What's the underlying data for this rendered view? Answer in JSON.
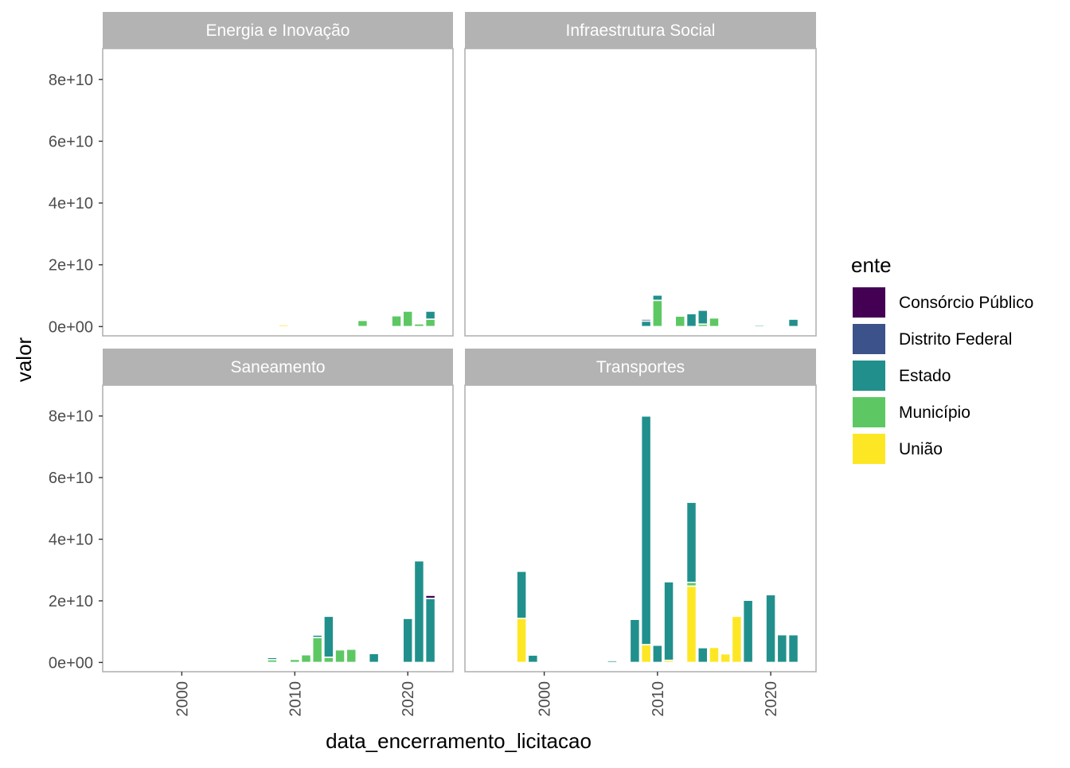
{
  "chart_data": {
    "type": "bar",
    "stacked": true,
    "facet_layout": "2x2",
    "xlabel": "data_encerramento_licitacao",
    "ylabel": "valor",
    "xlim": [
      1993,
      2024
    ],
    "ylim": [
      -3000000000,
      90000000000
    ],
    "x_ticks": [
      2000,
      2010,
      2020
    ],
    "x_tick_labels": [
      "2000",
      "2010",
      "2020"
    ],
    "y_ticks": [
      0,
      20000000000,
      40000000000,
      60000000000,
      80000000000
    ],
    "y_tick_labels": [
      "0e+00",
      "2e+10",
      "4e+10",
      "6e+10",
      "8e+10"
    ],
    "grid": false,
    "legend": {
      "title": "ente",
      "position": "right",
      "entries": [
        {
          "name": "Consórcio Público",
          "color": "#440154"
        },
        {
          "name": "Distrito Federal",
          "color": "#3B528B"
        },
        {
          "name": "Estado",
          "color": "#21908C"
        },
        {
          "name": "Município",
          "color": "#5DC863"
        },
        {
          "name": "União",
          "color": "#FDE725"
        }
      ]
    },
    "stack_order": [
      "União",
      "Município",
      "Estado",
      "Distrito Federal",
      "Consórcio Público"
    ],
    "panels": [
      {
        "title": "Energia e Inovação",
        "bars": [
          {
            "x": 2009,
            "values": {
              "União": 600000000
            }
          },
          {
            "x": 2016,
            "values": {
              "Município": 2000000000
            }
          },
          {
            "x": 2019,
            "values": {
              "Município": 3500000000
            }
          },
          {
            "x": 2020,
            "values": {
              "Município": 5000000000
            }
          },
          {
            "x": 2021,
            "values": {
              "Município": 900000000
            }
          },
          {
            "x": 2022,
            "values": {
              "Município": 2400000000,
              "Estado": 2600000000
            }
          }
        ]
      },
      {
        "title": "Infraestrutura Social",
        "bars": [
          {
            "x": 2009,
            "values": {
              "Estado": 1800000000,
              "Distrito Federal": 600000000
            }
          },
          {
            "x": 2010,
            "values": {
              "Município": 8500000000,
              "Estado": 1700000000
            }
          },
          {
            "x": 2012,
            "values": {
              "Município": 3400000000
            }
          },
          {
            "x": 2013,
            "values": {
              "Estado": 4200000000
            }
          },
          {
            "x": 2014,
            "values": {
              "Município": 800000000,
              "Estado": 4500000000
            }
          },
          {
            "x": 2015,
            "values": {
              "Município": 2800000000
            }
          },
          {
            "x": 2016,
            "values": {
              "Município": 300000000
            }
          },
          {
            "x": 2019,
            "values": {
              "Estado": 500000000
            }
          },
          {
            "x": 2022,
            "values": {
              "Estado": 2400000000
            }
          }
        ]
      },
      {
        "title": "Saneamento",
        "bars": [
          {
            "x": 2006,
            "values": {
              "Município": 300000000
            }
          },
          {
            "x": 2008,
            "values": {
              "Município": 900000000,
              "Estado": 700000000
            }
          },
          {
            "x": 2010,
            "values": {
              "Município": 1000000000
            }
          },
          {
            "x": 2011,
            "values": {
              "Município": 2500000000
            }
          },
          {
            "x": 2012,
            "values": {
              "Município": 8100000000,
              "Estado": 800000000
            }
          },
          {
            "x": 2013,
            "values": {
              "Município": 1700000000,
              "Estado": 13300000000
            }
          },
          {
            "x": 2014,
            "values": {
              "Município": 4100000000
            }
          },
          {
            "x": 2015,
            "values": {
              "Município": 4300000000
            }
          },
          {
            "x": 2017,
            "values": {
              "Estado": 2900000000
            }
          },
          {
            "x": 2020,
            "values": {
              "Estado": 14300000000
            }
          },
          {
            "x": 2021,
            "values": {
              "Estado": 33000000000
            }
          },
          {
            "x": 2022,
            "values": {
              "Estado": 20800000000,
              "Consórcio Público": 1000000000
            }
          }
        ]
      },
      {
        "title": "Transportes",
        "bars": [
          {
            "x": 1998,
            "values": {
              "União": 14300000000,
              "Estado": 15300000000
            }
          },
          {
            "x": 1999,
            "values": {
              "Estado": 2400000000
            }
          },
          {
            "x": 2006,
            "values": {
              "Estado": 600000000
            }
          },
          {
            "x": 2008,
            "values": {
              "Estado": 14000000000
            }
          },
          {
            "x": 2009,
            "values": {
              "União": 5800000000,
              "Estado": 74200000000
            }
          },
          {
            "x": 2010,
            "values": {
              "Estado": 5600000000
            }
          },
          {
            "x": 2011,
            "values": {
              "União": 700000000,
              "Estado": 25500000000
            }
          },
          {
            "x": 2013,
            "values": {
              "União": 24800000000,
              "Município": 1200000000,
              "Estado": 26000000000
            }
          },
          {
            "x": 2014,
            "values": {
              "Estado": 4800000000
            }
          },
          {
            "x": 2015,
            "values": {
              "União": 4900000000
            }
          },
          {
            "x": 2016,
            "values": {
              "União": 2800000000
            }
          },
          {
            "x": 2017,
            "values": {
              "União": 15000000000
            }
          },
          {
            "x": 2018,
            "values": {
              "Estado": 20200000000
            }
          },
          {
            "x": 2020,
            "values": {
              "Estado": 22000000000
            }
          },
          {
            "x": 2021,
            "values": {
              "Estado": 9000000000
            }
          },
          {
            "x": 2022,
            "values": {
              "Estado": 9000000000
            }
          }
        ]
      }
    ]
  }
}
